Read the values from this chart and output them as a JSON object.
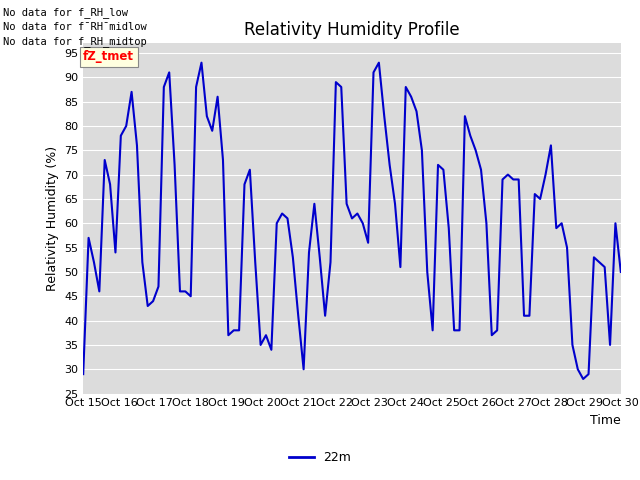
{
  "title": "Relativity Humidity Profile",
  "ylabel": "Relativity Humidity (%)",
  "xlabel": "Time",
  "ylim": [
    25,
    97
  ],
  "yticks": [
    25,
    30,
    35,
    40,
    45,
    50,
    55,
    60,
    65,
    70,
    75,
    80,
    85,
    90,
    95
  ],
  "line_color": "#0000CC",
  "line_width": 1.5,
  "bg_color": "#DCDCDC",
  "legend_label": "22m",
  "legend_color": "#0000CC",
  "no_data_texts": [
    "No data for f_RH_low",
    "No data for f¯RH¯midlow",
    "No data for f_RH_midtop"
  ],
  "tz_label": "fZ_tmet",
  "x_tick_labels": [
    "Oct 15",
    "Oct 16",
    "Oct 17",
    "Oct 18",
    "Oct 19",
    "Oct 20",
    "Oct 21",
    "Oct 22",
    "Oct 23",
    "Oct 24",
    "Oct 25",
    "Oct 26",
    "Oct 27",
    "Oct 28",
    "Oct 29",
    "Oct 30"
  ],
  "humidity_values": [
    29,
    57,
    52,
    46,
    73,
    68,
    54,
    78,
    80,
    87,
    76,
    52,
    43,
    44,
    47,
    88,
    91,
    72,
    46,
    46,
    45,
    88,
    93,
    82,
    79,
    86,
    73,
    37,
    38,
    38,
    68,
    71,
    52,
    35,
    37,
    34,
    60,
    62,
    61,
    53,
    41,
    30,
    54,
    64,
    53,
    41,
    52,
    89,
    88,
    64,
    61,
    62,
    60,
    56,
    91,
    93,
    82,
    72,
    64,
    51,
    88,
    86,
    83,
    75,
    50,
    38,
    72,
    71,
    59,
    38,
    38,
    82,
    78,
    75,
    71,
    60,
    37,
    38,
    69,
    70,
    69,
    69,
    41,
    41,
    66,
    65,
    70,
    76,
    59,
    60,
    55,
    35,
    30,
    28,
    29,
    53,
    52,
    51,
    35,
    60,
    50
  ]
}
